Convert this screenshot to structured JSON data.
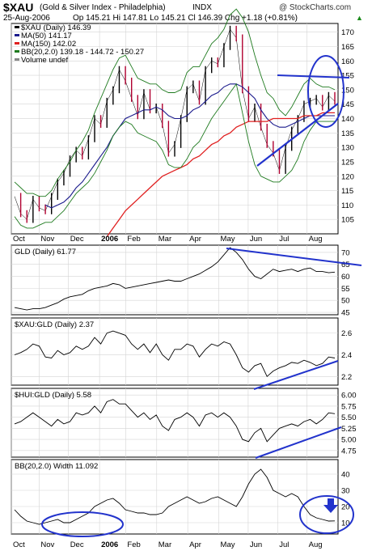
{
  "header": {
    "symbol": "$XAU",
    "name": "(Gold & Silver Index - Philadelphia)",
    "exchange": "INDX",
    "watermark": "@ StockCharts.com",
    "date": "25-Aug-2006",
    "quote": "Op 145.21  Hi 147.81  Lo 145.21  Cl 146.39  Chg +1.18 (+0.81%)",
    "change_arrow": "▲"
  },
  "colors": {
    "frame": "#000000",
    "grid": "#d4d4d4",
    "price": "#000000",
    "up_candle": "#000000",
    "down_candle": "#b00030",
    "ma50": "#1a1a8c",
    "ma150": "#e02020",
    "bb": "#1e7a1e",
    "annotation": "#2233cc"
  },
  "x_axis": {
    "labels": [
      "Oct",
      "Nov",
      "Dec",
      "2006",
      "Feb",
      "Mar",
      "Apr",
      "May",
      "Jun",
      "Jul",
      "Aug"
    ]
  },
  "chart_data": [
    {
      "type": "line",
      "title": "$XAU (Daily) 146.39",
      "legend": [
        {
          "label": "$XAU (Daily) 146.39",
          "color": "#000000"
        },
        {
          "label": "MA(50) 141.17",
          "color": "#1a1a8c"
        },
        {
          "label": "MA(150) 142.02",
          "color": "#e02020"
        },
        {
          "label": "BB(20,2.0) 139.18 - 144.72 - 150.27",
          "color": "#1e7a1e"
        },
        {
          "label": "Volume undef",
          "color": "#888888"
        }
      ],
      "ylim": [
        100,
        173
      ],
      "y_ticks": [
        105,
        110,
        115,
        120,
        125,
        130,
        135,
        140,
        145,
        150,
        155,
        160,
        165,
        170
      ],
      "series": [
        {
          "name": "$XAU (Daily)",
          "values": [
            113,
            107,
            105,
            112,
            109,
            108,
            113,
            118,
            121,
            126,
            129,
            127,
            133,
            140,
            138,
            146,
            150,
            157,
            153,
            147,
            141,
            149,
            143,
            144,
            138,
            128,
            131,
            140,
            150,
            152,
            146,
            157,
            160,
            159,
            165,
            171,
            168,
            150,
            140,
            144,
            137,
            131,
            128,
            122,
            130,
            136,
            140,
            145,
            146,
            147,
            144,
            148,
            146
          ]
        },
        {
          "name": "MA(50)",
          "values": [
            null,
            null,
            null,
            null,
            null,
            110,
            109,
            110,
            111,
            113,
            116,
            118,
            121,
            124,
            127,
            130,
            134,
            137,
            140,
            141,
            142,
            143,
            143,
            144,
            143,
            141,
            140,
            140,
            141,
            143,
            144,
            146,
            148,
            149,
            151,
            152,
            152,
            151,
            149,
            147,
            143,
            140,
            138,
            137,
            137,
            138,
            139,
            140,
            141,
            141,
            141,
            141,
            141
          ]
        },
        {
          "name": "MA(150)",
          "values": [
            null,
            null,
            null,
            null,
            null,
            null,
            null,
            null,
            null,
            null,
            null,
            null,
            null,
            null,
            null,
            99,
            102,
            105,
            108,
            110,
            112,
            114,
            116,
            118,
            120,
            121,
            122,
            123,
            124,
            126,
            127,
            129,
            131,
            132,
            134,
            135,
            137,
            138,
            139,
            139,
            139,
            139,
            140,
            140,
            140,
            140,
            140,
            141,
            141,
            141,
            142,
            142,
            142
          ]
        },
        {
          "name": "BB upper",
          "values": [
            118,
            116,
            114,
            114,
            113,
            113,
            115,
            119,
            122,
            125,
            129,
            132,
            136,
            142,
            147,
            152,
            157,
            161,
            162,
            158,
            154,
            153,
            152,
            152,
            150,
            149,
            149,
            150,
            156,
            158,
            158,
            162,
            166,
            168,
            171,
            176,
            178,
            175,
            170,
            162,
            155,
            149,
            147,
            143,
            141,
            144,
            148,
            152,
            154,
            152,
            151,
            151,
            150
          ]
        },
        {
          "name": "BB lower",
          "values": [
            106,
            103,
            102,
            102,
            103,
            104,
            104,
            106,
            108,
            111,
            114,
            116,
            118,
            121,
            125,
            129,
            134,
            137,
            139,
            138,
            135,
            134,
            133,
            132,
            129,
            124,
            123,
            123,
            126,
            130,
            132,
            136,
            140,
            143,
            146,
            149,
            152,
            142,
            132,
            124,
            120,
            119,
            118,
            118,
            120,
            122,
            126,
            132,
            136,
            139,
            139,
            139,
            139
          ]
        }
      ],
      "annotations": [
        "horizontal resistance line near 151",
        "rising support trendline from June low",
        "ellipse around August consolidation"
      ]
    },
    {
      "type": "line",
      "title": "GLD (Daily) 61.77",
      "ylim": [
        44,
        73
      ],
      "y_ticks": [
        45,
        50,
        55,
        60,
        65,
        70
      ],
      "series": [
        {
          "name": "GLD (Daily)",
          "values": [
            47,
            46.5,
            46,
            46.5,
            46.5,
            47,
            48,
            49,
            50.5,
            51.5,
            52,
            52.5,
            54,
            55,
            55.5,
            56,
            57,
            56.5,
            55,
            55.5,
            56,
            56.5,
            57,
            57.5,
            58,
            58.5,
            58,
            58,
            59,
            60,
            61,
            62.5,
            64,
            66,
            69,
            72,
            70,
            67,
            63,
            60,
            59,
            61,
            63,
            62,
            62.5,
            63,
            62,
            63,
            63.5,
            62,
            62,
            61.5,
            61.77
          ]
        }
      ],
      "annotations": [
        "declining trendline from May high"
      ]
    },
    {
      "type": "line",
      "title": "$XAU:GLD (Daily) 2.37",
      "ylim": [
        2.12,
        2.74
      ],
      "y_ticks": [
        2.2,
        2.4,
        2.6
      ],
      "series": [
        {
          "name": "$XAU:GLD",
          "values": [
            2.4,
            2.42,
            2.45,
            2.5,
            2.48,
            2.38,
            2.37,
            2.44,
            2.4,
            2.42,
            2.48,
            2.45,
            2.48,
            2.56,
            2.5,
            2.6,
            2.62,
            2.6,
            2.58,
            2.5,
            2.45,
            2.5,
            2.42,
            2.5,
            2.4,
            2.35,
            2.45,
            2.45,
            2.5,
            2.48,
            2.38,
            2.45,
            2.5,
            2.48,
            2.52,
            2.5,
            2.4,
            2.28,
            2.24,
            2.3,
            2.32,
            2.2,
            2.25,
            2.28,
            2.3,
            2.33,
            2.32,
            2.35,
            2.33,
            2.3,
            2.32,
            2.38,
            2.37
          ]
        }
      ],
      "annotations": [
        "rising trendline from June low"
      ]
    },
    {
      "type": "line",
      "title": "$HUI:GLD (Daily) 5.58",
      "ylim": [
        4.6,
        6.15
      ],
      "y_ticks": [
        4.75,
        5.0,
        5.25,
        5.5,
        5.75,
        6.0
      ],
      "series": [
        {
          "name": "$HUI:GLD",
          "values": [
            5.35,
            5.4,
            5.5,
            5.6,
            5.5,
            5.4,
            5.3,
            5.45,
            5.35,
            5.4,
            5.6,
            5.55,
            5.6,
            5.75,
            5.6,
            5.85,
            5.9,
            5.8,
            5.8,
            5.65,
            5.5,
            5.6,
            5.45,
            5.55,
            5.3,
            5.2,
            5.45,
            5.5,
            5.6,
            5.5,
            5.3,
            5.55,
            5.6,
            5.5,
            5.6,
            5.5,
            5.3,
            5.0,
            4.95,
            5.15,
            5.25,
            4.95,
            5.1,
            5.25,
            5.3,
            5.35,
            5.3,
            5.4,
            5.45,
            5.35,
            5.45,
            5.6,
            5.58
          ]
        }
      ],
      "annotations": [
        "rising trendline from June low"
      ]
    },
    {
      "type": "line",
      "title": "BB(20,2.0) Width 11.092",
      "ylim": [
        3,
        49
      ],
      "y_ticks": [
        10,
        20,
        30,
        40
      ],
      "series": [
        {
          "name": "BB Width",
          "values": [
            18,
            14,
            11,
            10,
            9,
            10,
            11,
            12,
            10,
            10,
            12,
            14,
            16,
            20,
            22,
            24,
            25,
            22,
            18,
            17,
            16,
            16,
            15,
            15,
            16,
            20,
            22,
            24,
            26,
            24,
            22,
            23,
            25,
            26,
            24,
            22,
            20,
            26,
            34,
            40,
            43,
            38,
            30,
            28,
            26,
            28,
            26,
            20,
            15,
            13,
            12,
            11,
            11.09
          ]
        }
      ],
      "annotations": [
        "ellipse around Nov–Dec low width",
        "ellipse around August low width",
        "down arrow"
      ]
    }
  ]
}
